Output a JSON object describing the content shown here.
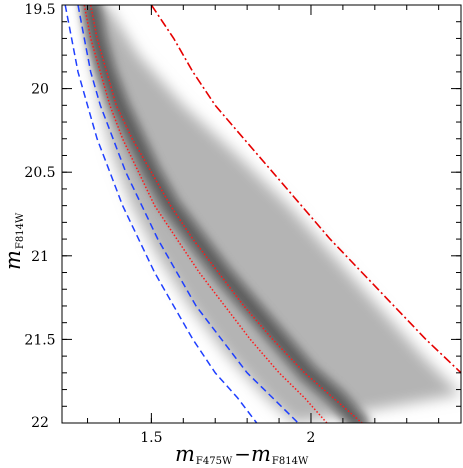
{
  "chart_data": {
    "type": "scatter",
    "title": "",
    "xlabel": {
      "main": "m",
      "sub1": "F475W",
      "dash": "−",
      "main2": "m",
      "sub2": "F814W"
    },
    "ylabel": {
      "main": "m",
      "sub": "F814W"
    },
    "xlim": [
      1.22,
      2.47
    ],
    "ylim": [
      22.0,
      19.5
    ],
    "y_inverted": true,
    "x_ticks": [
      {
        "value": 1.5,
        "label": "1.5"
      },
      {
        "value": 2.0,
        "label": "2"
      }
    ],
    "y_ticks": [
      {
        "value": 19.5,
        "label": "19.5"
      },
      {
        "value": 20.0,
        "label": "20"
      },
      {
        "value": 20.5,
        "label": "20.5"
      },
      {
        "value": 21.0,
        "label": "21"
      },
      {
        "value": 21.5,
        "label": "21.5"
      },
      {
        "value": 22.0,
        "label": "22"
      }
    ],
    "grid": false,
    "density_band": {
      "description_color": "#6f6f6f",
      "ridge": [
        [
          1.31,
          19.5
        ],
        [
          1.33,
          19.7
        ],
        [
          1.36,
          19.9
        ],
        [
          1.4,
          20.1
        ],
        [
          1.45,
          20.3
        ],
        [
          1.5,
          20.5
        ],
        [
          1.56,
          20.7
        ],
        [
          1.64,
          20.9
        ],
        [
          1.72,
          21.1
        ],
        [
          1.81,
          21.3
        ],
        [
          1.9,
          21.5
        ],
        [
          1.99,
          21.7
        ],
        [
          2.08,
          21.85
        ],
        [
          2.15,
          22.0
        ]
      ],
      "left_edge": [
        [
          1.29,
          19.5
        ],
        [
          1.31,
          19.8
        ],
        [
          1.34,
          20.1
        ],
        [
          1.38,
          20.4
        ],
        [
          1.44,
          20.7
        ],
        [
          1.52,
          21.0
        ],
        [
          1.62,
          21.3
        ],
        [
          1.74,
          21.6
        ],
        [
          1.86,
          21.85
        ],
        [
          1.95,
          22.0
        ]
      ],
      "right_edge": [
        [
          1.36,
          19.5
        ],
        [
          1.46,
          19.8
        ],
        [
          1.6,
          20.1
        ],
        [
          1.77,
          20.4
        ],
        [
          1.93,
          20.7
        ],
        [
          2.07,
          21.0
        ],
        [
          2.21,
          21.3
        ],
        [
          2.35,
          21.6
        ],
        [
          2.47,
          21.83
        ]
      ]
    },
    "series": [
      {
        "style": "dashed",
        "color": "#1f3fff",
        "points": [
          [
            1.23,
            19.5
          ],
          [
            1.25,
            19.7
          ],
          [
            1.27,
            19.9
          ],
          [
            1.3,
            20.1
          ],
          [
            1.33,
            20.3
          ],
          [
            1.37,
            20.5
          ],
          [
            1.41,
            20.7
          ],
          [
            1.46,
            20.9
          ],
          [
            1.51,
            21.1
          ],
          [
            1.57,
            21.3
          ],
          [
            1.63,
            21.5
          ],
          [
            1.7,
            21.7
          ],
          [
            1.77,
            21.85
          ],
          [
            1.83,
            22.0
          ]
        ]
      },
      {
        "style": "dashed",
        "color": "#1f3fff",
        "points": [
          [
            1.27,
            19.5
          ],
          [
            1.29,
            19.7
          ],
          [
            1.31,
            19.9
          ],
          [
            1.34,
            20.1
          ],
          [
            1.38,
            20.3
          ],
          [
            1.42,
            20.5
          ],
          [
            1.47,
            20.7
          ],
          [
            1.52,
            20.9
          ],
          [
            1.58,
            21.1
          ],
          [
            1.64,
            21.3
          ],
          [
            1.72,
            21.5
          ],
          [
            1.8,
            21.7
          ],
          [
            1.88,
            21.85
          ],
          [
            1.96,
            22.0
          ]
        ]
      },
      {
        "style": "dotted",
        "color": "#ff1a1a",
        "points": [
          [
            1.29,
            19.5
          ],
          [
            1.31,
            19.7
          ],
          [
            1.34,
            19.9
          ],
          [
            1.37,
            20.1
          ],
          [
            1.41,
            20.3
          ],
          [
            1.46,
            20.5
          ],
          [
            1.51,
            20.7
          ],
          [
            1.58,
            20.9
          ],
          [
            1.65,
            21.1
          ],
          [
            1.73,
            21.3
          ],
          [
            1.81,
            21.5
          ],
          [
            1.9,
            21.7
          ],
          [
            1.98,
            21.85
          ],
          [
            2.05,
            22.0
          ]
        ]
      },
      {
        "style": "dotted",
        "color": "#ff1a1a",
        "points": [
          [
            1.31,
            19.5
          ],
          [
            1.33,
            19.7
          ],
          [
            1.36,
            19.9
          ],
          [
            1.39,
            20.1
          ],
          [
            1.44,
            20.3
          ],
          [
            1.5,
            20.5
          ],
          [
            1.56,
            20.7
          ],
          [
            1.63,
            20.9
          ],
          [
            1.71,
            21.1
          ],
          [
            1.79,
            21.3
          ],
          [
            1.88,
            21.5
          ],
          [
            1.98,
            21.7
          ],
          [
            2.07,
            21.85
          ],
          [
            2.16,
            22.0
          ]
        ]
      },
      {
        "style": "dashdot",
        "color": "#e60000",
        "points": [
          [
            1.5,
            19.5
          ],
          [
            1.57,
            19.7
          ],
          [
            1.63,
            19.9
          ],
          [
            1.7,
            20.1
          ],
          [
            1.79,
            20.3
          ],
          [
            1.88,
            20.5
          ],
          [
            1.97,
            20.7
          ],
          [
            2.06,
            20.9
          ],
          [
            2.16,
            21.1
          ],
          [
            2.26,
            21.3
          ],
          [
            2.36,
            21.5
          ],
          [
            2.47,
            21.7
          ]
        ]
      }
    ]
  }
}
